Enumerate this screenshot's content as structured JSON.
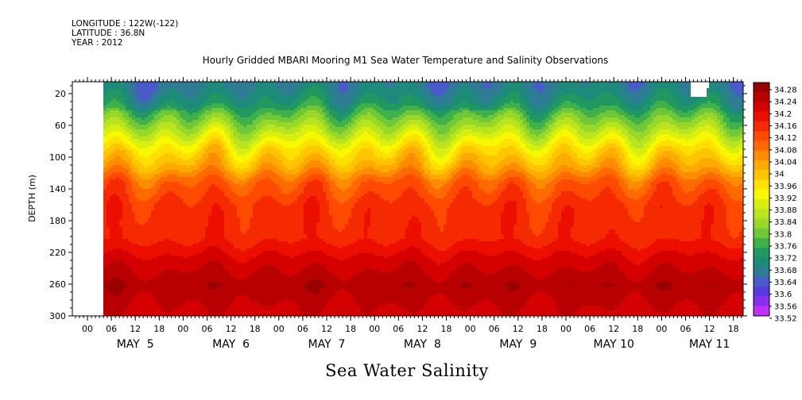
{
  "header": {
    "longitude": "LONGITUDE : 122W(-122)",
    "latitude": "LATITUDE : 36.8N",
    "year": "YEAR : 2012",
    "title": "Hourly Gridded MBARI Mooring M1 Sea Water Temperature and Salinity Observations",
    "variable": "Sea Water Salinity"
  },
  "chart_data": {
    "type": "heatmap",
    "title": "Hourly Gridded MBARI Mooring M1 Sea Water Temperature and Salinity Observations",
    "xlabel": "",
    "ylabel": "DEPTH (m)",
    "variable": "Sea Water Salinity",
    "x_range_hours_labels": [
      "MAY 5 00",
      "MAY 11 22"
    ],
    "y_ticks": [
      20,
      60,
      100,
      140,
      180,
      220,
      260,
      300
    ],
    "ylim": [
      300,
      5
    ],
    "x_hour_ticks": [
      "00",
      "06",
      "12",
      "18",
      "00",
      "06",
      "12",
      "18",
      "00",
      "06",
      "12",
      "18",
      "00",
      "06",
      "12",
      "18",
      "00",
      "06",
      "12",
      "18",
      "00",
      "06",
      "12",
      "18",
      "00",
      "06",
      "12",
      "18"
    ],
    "x_day_labels": [
      "MAY  5",
      "MAY  6",
      "MAY  7",
      "MAY  8",
      "MAY  9",
      "MAY 10",
      "MAY 11"
    ],
    "colorbar": {
      "levels": [
        "34.28",
        "34.24",
        "34.2",
        "34.16",
        "34.12",
        "34.08",
        "34.04",
        "34",
        "33.96",
        "33.92",
        "33.88",
        "33.84",
        "33.8",
        "33.76",
        "33.72",
        "33.68",
        "33.64",
        "33.6",
        "33.56",
        "33.52"
      ],
      "colors": [
        "#9a0000",
        "#b80000",
        "#d50000",
        "#ec0f00",
        "#f52a00",
        "#ff4a00",
        "#ff6a00",
        "#ff8c00",
        "#ffaa00",
        "#ffc600",
        "#ffe000",
        "#f8f800",
        "#d8ef10",
        "#b8e420",
        "#98d828",
        "#70c838",
        "#40b048",
        "#209860",
        "#1e8a7a",
        "#2e7c94",
        "#4a5ac8",
        "#5a3ae0",
        "#8a2ef0",
        "#c030f8"
      ]
    },
    "depth_profile": [
      {
        "depth": 10,
        "salinity": 33.68
      },
      {
        "depth": 30,
        "salinity": 33.72
      },
      {
        "depth": 50,
        "salinity": 33.8
      },
      {
        "depth": 70,
        "salinity": 33.88
      },
      {
        "depth": 90,
        "salinity": 33.96
      },
      {
        "depth": 110,
        "salinity": 34.02
      },
      {
        "depth": 130,
        "salinity": 34.1
      },
      {
        "depth": 160,
        "salinity": 34.15
      },
      {
        "depth": 200,
        "salinity": 34.16
      },
      {
        "depth": 230,
        "salinity": 34.22
      },
      {
        "depth": 260,
        "salinity": 34.26
      },
      {
        "depth": 300,
        "salinity": 34.22
      }
    ]
  }
}
